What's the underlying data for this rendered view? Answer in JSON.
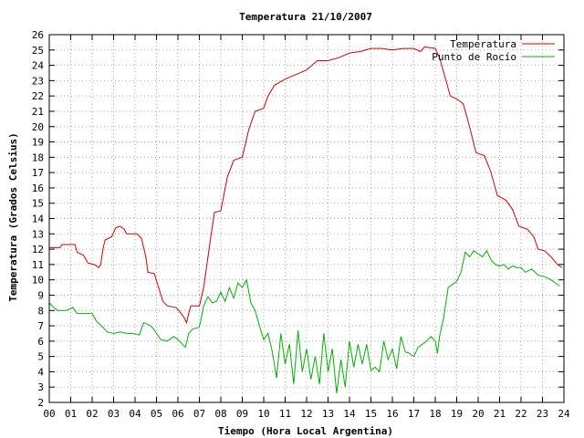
{
  "chart_data": {
    "type": "line",
    "title": "Temperatura 21/10/2007",
    "xlabel": "Tiempo (Hora Local Argentina)",
    "ylabel": "Temperatura (Grados Celsius)",
    "xlim": [
      0,
      24
    ],
    "ylim": [
      2,
      26
    ],
    "x_ticks": [
      "00",
      "01",
      "02",
      "03",
      "04",
      "05",
      "06",
      "07",
      "08",
      "09",
      "10",
      "11",
      "12",
      "13",
      "14",
      "15",
      "16",
      "17",
      "18",
      "19",
      "20",
      "21",
      "22",
      "23",
      "24"
    ],
    "y_ticks": [
      2,
      3,
      4,
      5,
      6,
      7,
      8,
      9,
      10,
      11,
      12,
      13,
      14,
      15,
      16,
      17,
      18,
      19,
      20,
      21,
      22,
      23,
      24,
      25,
      26
    ],
    "grid": true,
    "legend_position": "top-right",
    "series": [
      {
        "name": "Temperatura",
        "color": "#cc0000",
        "points": [
          [
            0.0,
            12.1
          ],
          [
            0.5,
            12.1
          ],
          [
            0.6,
            12.3
          ],
          [
            1.2,
            12.3
          ],
          [
            1.3,
            11.8
          ],
          [
            1.6,
            11.6
          ],
          [
            1.8,
            11.1
          ],
          [
            2.1,
            11.0
          ],
          [
            2.3,
            10.8
          ],
          [
            2.4,
            11.0
          ],
          [
            2.5,
            12.0
          ],
          [
            2.6,
            12.6
          ],
          [
            2.9,
            12.8
          ],
          [
            3.1,
            13.4
          ],
          [
            3.3,
            13.5
          ],
          [
            3.5,
            13.3
          ],
          [
            3.6,
            13.0
          ],
          [
            4.1,
            13.0
          ],
          [
            4.3,
            12.7
          ],
          [
            4.5,
            11.5
          ],
          [
            4.6,
            10.5
          ],
          [
            4.9,
            10.4
          ],
          [
            5.1,
            9.5
          ],
          [
            5.3,
            8.6
          ],
          [
            5.5,
            8.3
          ],
          [
            5.9,
            8.2
          ],
          [
            6.1,
            7.9
          ],
          [
            6.3,
            7.5
          ],
          [
            6.4,
            7.2
          ],
          [
            6.5,
            7.8
          ],
          [
            6.6,
            8.3
          ],
          [
            7.0,
            8.3
          ],
          [
            7.2,
            9.5
          ],
          [
            7.5,
            12.5
          ],
          [
            7.7,
            14.4
          ],
          [
            8.0,
            14.5
          ],
          [
            8.3,
            16.7
          ],
          [
            8.6,
            17.8
          ],
          [
            9.0,
            18.0
          ],
          [
            9.3,
            19.8
          ],
          [
            9.6,
            21.0
          ],
          [
            10.0,
            21.2
          ],
          [
            10.2,
            22.0
          ],
          [
            10.5,
            22.7
          ],
          [
            11.0,
            23.1
          ],
          [
            11.5,
            23.4
          ],
          [
            12.0,
            23.7
          ],
          [
            12.5,
            24.3
          ],
          [
            13.0,
            24.3
          ],
          [
            13.5,
            24.5
          ],
          [
            14.0,
            24.8
          ],
          [
            14.5,
            24.9
          ],
          [
            15.0,
            25.1
          ],
          [
            15.5,
            25.1
          ],
          [
            16.0,
            25.0
          ],
          [
            16.5,
            25.1
          ],
          [
            17.0,
            25.1
          ],
          [
            17.3,
            24.9
          ],
          [
            17.5,
            25.2
          ],
          [
            18.0,
            25.1
          ],
          [
            18.2,
            24.5
          ],
          [
            18.5,
            23.0
          ],
          [
            18.7,
            22.0
          ],
          [
            19.0,
            21.8
          ],
          [
            19.3,
            21.5
          ],
          [
            19.6,
            20.0
          ],
          [
            19.9,
            18.3
          ],
          [
            20.3,
            18.1
          ],
          [
            20.6,
            17.0
          ],
          [
            20.9,
            15.5
          ],
          [
            21.3,
            15.2
          ],
          [
            21.6,
            14.6
          ],
          [
            21.9,
            13.5
          ],
          [
            22.3,
            13.3
          ],
          [
            22.6,
            12.8
          ],
          [
            22.8,
            12.0
          ],
          [
            23.1,
            11.9
          ],
          [
            23.4,
            11.5
          ],
          [
            23.7,
            11.0
          ],
          [
            23.9,
            10.8
          ]
        ]
      },
      {
        "name": "Punto de Rocío",
        "color": "#00b000",
        "points": [
          [
            0.0,
            8.5
          ],
          [
            0.2,
            8.2
          ],
          [
            0.4,
            8.0
          ],
          [
            0.8,
            8.0
          ],
          [
            1.1,
            8.2
          ],
          [
            1.3,
            7.8
          ],
          [
            1.6,
            7.8
          ],
          [
            2.0,
            7.8
          ],
          [
            2.2,
            7.3
          ],
          [
            2.5,
            6.9
          ],
          [
            2.7,
            6.6
          ],
          [
            3.0,
            6.5
          ],
          [
            3.3,
            6.6
          ],
          [
            3.6,
            6.5
          ],
          [
            3.9,
            6.5
          ],
          [
            4.2,
            6.4
          ],
          [
            4.4,
            7.2
          ],
          [
            4.6,
            7.1
          ],
          [
            4.8,
            6.9
          ],
          [
            5.0,
            6.5
          ],
          [
            5.2,
            6.1
          ],
          [
            5.5,
            6.0
          ],
          [
            5.8,
            6.3
          ],
          [
            6.0,
            6.1
          ],
          [
            6.2,
            5.8
          ],
          [
            6.35,
            5.6
          ],
          [
            6.5,
            6.5
          ],
          [
            6.7,
            6.8
          ],
          [
            7.0,
            6.9
          ],
          [
            7.2,
            8.3
          ],
          [
            7.4,
            8.9
          ],
          [
            7.6,
            8.5
          ],
          [
            7.8,
            8.6
          ],
          [
            8.0,
            9.2
          ],
          [
            8.2,
            8.6
          ],
          [
            8.4,
            9.5
          ],
          [
            8.6,
            8.8
          ],
          [
            8.8,
            9.8
          ],
          [
            9.0,
            9.5
          ],
          [
            9.2,
            10.0
          ],
          [
            9.4,
            8.5
          ],
          [
            9.6,
            8.0
          ],
          [
            9.8,
            7.0
          ],
          [
            10.0,
            6.1
          ],
          [
            10.2,
            6.5
          ],
          [
            10.4,
            5.3
          ],
          [
            10.6,
            3.6
          ],
          [
            10.8,
            6.5
          ],
          [
            11.0,
            4.5
          ],
          [
            11.2,
            5.8
          ],
          [
            11.4,
            3.2
          ],
          [
            11.6,
            6.7
          ],
          [
            11.8,
            4.0
          ],
          [
            12.0,
            5.5
          ],
          [
            12.2,
            3.5
          ],
          [
            12.4,
            5.0
          ],
          [
            12.6,
            3.2
          ],
          [
            12.8,
            6.5
          ],
          [
            13.0,
            4.0
          ],
          [
            13.2,
            5.5
          ],
          [
            13.4,
            2.6
          ],
          [
            13.6,
            4.8
          ],
          [
            13.8,
            3.0
          ],
          [
            14.0,
            6.0
          ],
          [
            14.2,
            4.3
          ],
          [
            14.4,
            5.8
          ],
          [
            14.6,
            4.5
          ],
          [
            14.8,
            5.8
          ],
          [
            15.0,
            4.1
          ],
          [
            15.2,
            4.3
          ],
          [
            15.4,
            4.0
          ],
          [
            15.6,
            6.0
          ],
          [
            15.8,
            4.8
          ],
          [
            16.0,
            5.5
          ],
          [
            16.2,
            4.2
          ],
          [
            16.4,
            6.3
          ],
          [
            16.6,
            5.3
          ],
          [
            16.8,
            5.2
          ],
          [
            17.0,
            5.0
          ],
          [
            17.2,
            5.6
          ],
          [
            17.4,
            5.8
          ],
          [
            17.6,
            6.0
          ],
          [
            17.8,
            6.3
          ],
          [
            18.0,
            6.0
          ],
          [
            18.1,
            5.2
          ],
          [
            18.2,
            6.3
          ],
          [
            18.4,
            7.6
          ],
          [
            18.6,
            9.5
          ],
          [
            18.8,
            9.7
          ],
          [
            19.0,
            9.9
          ],
          [
            19.2,
            10.5
          ],
          [
            19.4,
            11.8
          ],
          [
            19.6,
            11.5
          ],
          [
            19.8,
            11.9
          ],
          [
            20.0,
            11.7
          ],
          [
            20.2,
            11.5
          ],
          [
            20.4,
            11.9
          ],
          [
            20.6,
            11.3
          ],
          [
            20.8,
            11.0
          ],
          [
            21.0,
            10.9
          ],
          [
            21.2,
            11.0
          ],
          [
            21.4,
            10.7
          ],
          [
            21.6,
            10.9
          ],
          [
            21.8,
            10.8
          ],
          [
            22.0,
            10.8
          ],
          [
            22.2,
            10.5
          ],
          [
            22.5,
            10.7
          ],
          [
            22.8,
            10.3
          ],
          [
            23.1,
            10.2
          ],
          [
            23.4,
            10.0
          ],
          [
            23.6,
            9.8
          ],
          [
            23.8,
            9.6
          ]
        ]
      }
    ]
  }
}
